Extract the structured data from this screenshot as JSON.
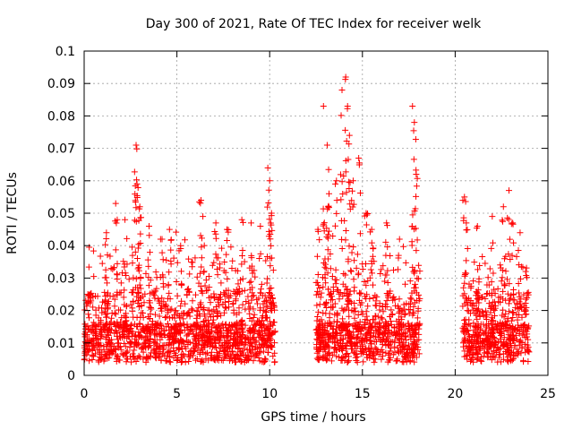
{
  "chart_data": {
    "type": "scatter",
    "title": "Day 300 of 2021, Rate Of TEC Index for receiver welk",
    "xlabel": "GPS time / hours",
    "ylabel": "ROTI / TECUs",
    "xlim": [
      0,
      25
    ],
    "ylim": [
      0,
      0.1
    ],
    "x_ticks": [
      "0",
      "5",
      "10",
      "15",
      "20",
      "25"
    ],
    "y_ticks": [
      "0",
      "0.01",
      "0.02",
      "0.03",
      "0.04",
      "0.05",
      "0.06",
      "0.07",
      "0.08",
      "0.09",
      "0.1"
    ],
    "grid": true,
    "marker": "+",
    "series_color": "#ff0000",
    "data_segments": [
      {
        "x_start": 0.0,
        "x_end": 10.3
      },
      {
        "x_start": 12.5,
        "x_end": 18.1
      },
      {
        "x_start": 20.4,
        "x_end": 24.0
      }
    ],
    "x": [
      0.2,
      1.2,
      1.7,
      2.2,
      2.8,
      2.85,
      3.0,
      3.5,
      4.2,
      4.6,
      5.2,
      6.3,
      6.4,
      7.1,
      7.7,
      8.5,
      9.0,
      9.5,
      9.9,
      10.0,
      10.1,
      12.6,
      12.9,
      13.1,
      13.2,
      13.6,
      13.9,
      14.1,
      14.2,
      14.3,
      14.5,
      14.8,
      15.2,
      15.5,
      16.3,
      17.0,
      17.7,
      17.8,
      17.9,
      20.5,
      20.6,
      21.2,
      22.0,
      22.6,
      22.9,
      23.1,
      23.5,
      23.8
    ],
    "y": [
      0.025,
      0.044,
      0.053,
      0.048,
      0.071,
      0.059,
      0.052,
      0.046,
      0.042,
      0.045,
      0.04,
      0.054,
      0.049,
      0.047,
      0.045,
      0.048,
      0.047,
      0.046,
      0.064,
      0.06,
      0.05,
      0.045,
      0.083,
      0.071,
      0.056,
      0.06,
      0.088,
      0.092,
      0.083,
      0.074,
      0.06,
      0.067,
      0.05,
      0.045,
      0.047,
      0.042,
      0.083,
      0.078,
      0.062,
      0.055,
      0.047,
      0.046,
      0.049,
      0.052,
      0.057,
      0.047,
      0.044,
      0.032
    ]
  }
}
